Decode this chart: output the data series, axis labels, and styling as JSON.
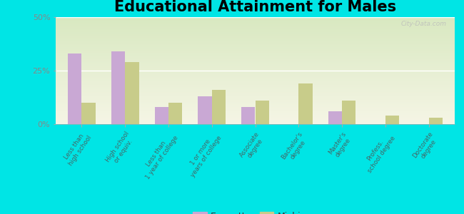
{
  "title": "Educational Attainment for Males",
  "categories": [
    "Less than\nhigh school",
    "High school\nor equiv.",
    "Less than\n1 year of college",
    "1 or more\nyears of college",
    "Associate\ndegree",
    "Bachelor's\ndegree",
    "Master's\ndegree",
    "Profess.\nschool degree",
    "Doctorate\ndegree"
  ],
  "emmett_values": [
    33,
    34,
    8,
    13,
    8,
    0,
    6,
    0,
    0
  ],
  "michigan_values": [
    10,
    29,
    10,
    16,
    11,
    19,
    11,
    4,
    3
  ],
  "emmett_color": "#c9a8d4",
  "michigan_color": "#c8cc8a",
  "plot_bg_top": "#d8e8c0",
  "plot_bg_bottom": "#f5f5e5",
  "ylim": [
    0,
    50
  ],
  "yticks": [
    0,
    25,
    50
  ],
  "ytick_labels": [
    "0%",
    "25%",
    "50%"
  ],
  "outer_bg": "#00e5e5",
  "title_fontsize": 15,
  "bar_width": 0.32,
  "grid_color": "#ccccaa",
  "tick_color": "#888888",
  "label_color": "#446666"
}
